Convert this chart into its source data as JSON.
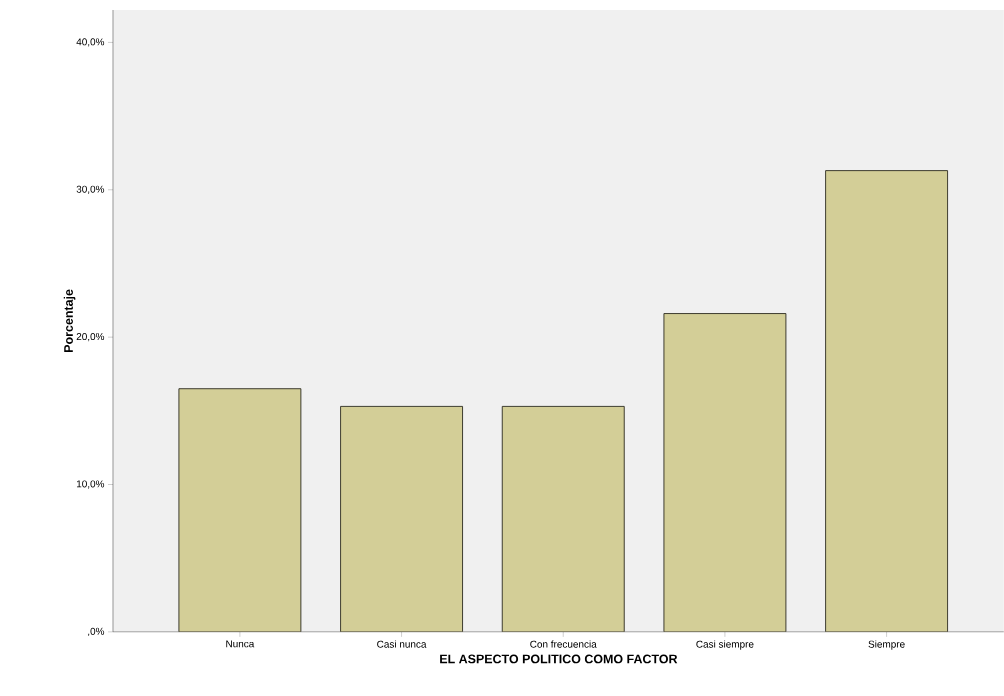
{
  "chart_data": {
    "type": "bar",
    "xlabel": "EL ASPECTO POLITICO COMO FACTOR",
    "ylabel": "Porcentaje",
    "categories": [
      "Nunca",
      "Casi nunca",
      "Con frecuencia",
      "Casi siempre",
      "Siempre"
    ],
    "values": [
      16.5,
      15.3,
      15.3,
      21.6,
      31.3
    ],
    "color": "#d3ce97",
    "ylim": [
      0,
      42.2
    ],
    "yticks": [
      {
        "value": 0,
        "label": ",0%"
      },
      {
        "value": 10,
        "label": "10,0%"
      },
      {
        "value": 20,
        "label": "20,0%"
      },
      {
        "value": 30,
        "label": "30,0%"
      },
      {
        "value": 40,
        "label": "40,0%"
      }
    ],
    "grid": false
  }
}
